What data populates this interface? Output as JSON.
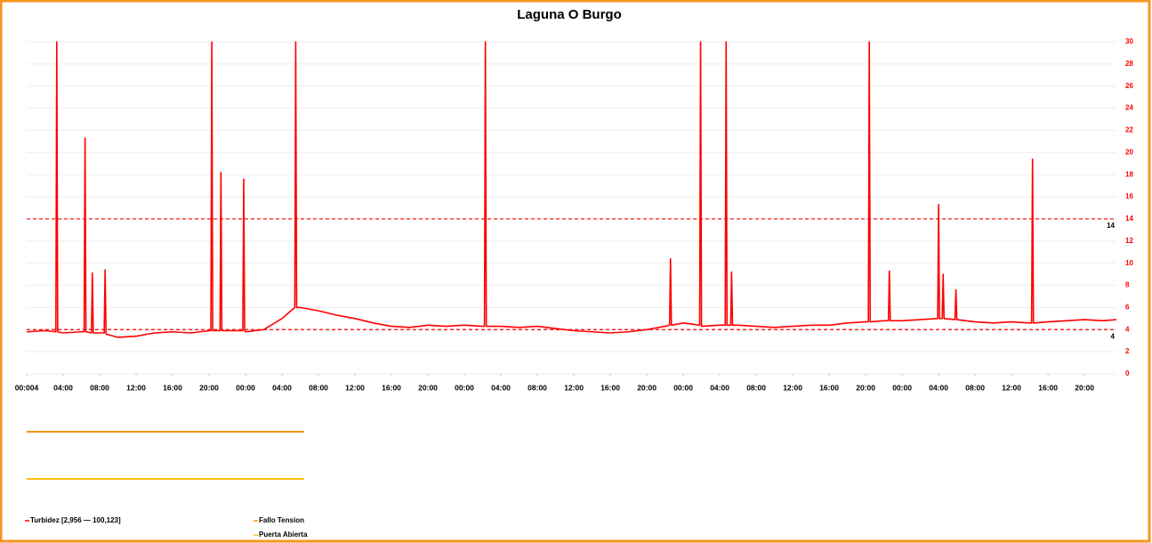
{
  "chart_data": {
    "type": "line",
    "title": "Laguna O Burgo",
    "x": [
      0,
      2,
      3.2,
      3.3,
      3.4,
      4,
      6,
      6.3,
      6.4,
      6.5,
      7.1,
      7.2,
      7.3,
      8,
      8.5,
      8.6,
      8.7,
      10,
      12,
      14,
      16,
      18,
      20,
      20.2,
      20.3,
      20.4,
      21.2,
      21.3,
      21.4,
      22,
      23.7,
      23.8,
      23.9,
      24,
      26,
      28,
      29.4,
      29.5,
      29.6,
      30,
      32,
      34,
      36,
      38,
      40,
      42,
      44,
      46,
      48,
      50,
      50.2,
      50.3,
      50.4,
      52,
      54,
      56,
      58,
      60,
      62,
      64,
      66,
      68,
      70,
      70.5,
      70.6,
      70.7,
      72,
      73.8,
      73.9,
      74,
      76,
      76.6,
      76.7,
      76.8,
      77.2,
      77.3,
      77.4,
      78,
      80,
      82,
      84,
      86,
      88,
      90,
      92,
      92.3,
      92.4,
      92.5,
      94,
      94.5,
      94.6,
      94.7,
      96,
      98,
      99.9,
      100,
      100.1,
      100.4,
      100.5,
      100.6,
      101.8,
      101.9,
      102,
      104,
      106,
      108,
      110,
      110.2,
      110.3,
      110.4,
      112,
      114,
      116,
      118,
      119.5
    ],
    "series": [
      {
        "name": "Turbidez [2,956 — 100,123]",
        "color": "#ff0000",
        "values": [
          3.8,
          3.9,
          3.8,
          30,
          3.8,
          3.7,
          3.8,
          3.8,
          21.3,
          3.8,
          3.7,
          9.1,
          3.7,
          3.7,
          3.7,
          9.4,
          3.6,
          3.3,
          3.4,
          3.7,
          3.8,
          3.7,
          3.9,
          3.9,
          30,
          3.9,
          3.9,
          18.2,
          3.9,
          3.9,
          3.9,
          17.6,
          3.9,
          3.8,
          4.0,
          5.0,
          6,
          30,
          6,
          6.0,
          5.7,
          5.3,
          5.0,
          4.6,
          4.3,
          4.2,
          4.4,
          4.3,
          4.4,
          4.3,
          4.3,
          30,
          4.3,
          4.3,
          4.2,
          4.3,
          4.1,
          3.9,
          3.8,
          3.7,
          3.8,
          4.0,
          4.3,
          4.4,
          10.4,
          4.4,
          4.6,
          4.4,
          30,
          4.3,
          4.4,
          4.4,
          30,
          4.4,
          4.4,
          9.2,
          4.4,
          4.4,
          4.3,
          4.2,
          4.3,
          4.4,
          4.4,
          4.6,
          4.7,
          4.7,
          30,
          4.7,
          4.8,
          4.8,
          9.3,
          4.8,
          4.8,
          4.9,
          5.0,
          15.3,
          5.0,
          5.0,
          9,
          5.0,
          4.9,
          7.6,
          4.9,
          4.7,
          4.6,
          4.7,
          4.6,
          4.6,
          19.4,
          4.6,
          4.7,
          4.8,
          4.9,
          4.8,
          4.9
        ]
      },
      {
        "name": "Fallo Tension",
        "color": "#f7941d"
      },
      {
        "name": "Puerta Abierta",
        "color": "#ffc20e"
      }
    ],
    "thresholds": [
      14,
      4
    ],
    "xlim": [
      0,
      119.5
    ],
    "xticks": [
      {
        "value": 0,
        "label": "00:004"
      },
      {
        "value": 4,
        "label": "04:00"
      },
      {
        "value": 8,
        "label": "08:00"
      },
      {
        "value": 12,
        "label": "12:00"
      },
      {
        "value": 16,
        "label": "16:00"
      },
      {
        "value": 20,
        "label": "20:00"
      },
      {
        "value": 24,
        "label": "00:00"
      },
      {
        "value": 28,
        "label": "04:00"
      },
      {
        "value": 32,
        "label": "08:00"
      },
      {
        "value": 36,
        "label": "12:00"
      },
      {
        "value": 40,
        "label": "16:00"
      },
      {
        "value": 44,
        "label": "20:00"
      },
      {
        "value": 48,
        "label": "00:00"
      },
      {
        "value": 52,
        "label": "04:00"
      },
      {
        "value": 56,
        "label": "08:00"
      },
      {
        "value": 60,
        "label": "12:00"
      },
      {
        "value": 64,
        "label": "16:00"
      },
      {
        "value": 68,
        "label": "20:00"
      },
      {
        "value": 72,
        "label": "00:00"
      },
      {
        "value": 76,
        "label": "04:00"
      },
      {
        "value": 80,
        "label": "08:00"
      },
      {
        "value": 84,
        "label": "12:00"
      },
      {
        "value": 88,
        "label": "16:00"
      },
      {
        "value": 92,
        "label": "20:00"
      },
      {
        "value": 96,
        "label": "00:00"
      },
      {
        "value": 100,
        "label": "04:00"
      },
      {
        "value": 104,
        "label": "08:00"
      },
      {
        "value": 108,
        "label": "12:00"
      },
      {
        "value": 112,
        "label": "16:00"
      },
      {
        "value": 116,
        "label": "20:00"
      }
    ],
    "ylim": [
      0,
      30
    ],
    "yticks": [
      0,
      2,
      4,
      6,
      8,
      10,
      12,
      14,
      16,
      18,
      20,
      22,
      24,
      26,
      28,
      30
    ],
    "grid": true
  }
}
